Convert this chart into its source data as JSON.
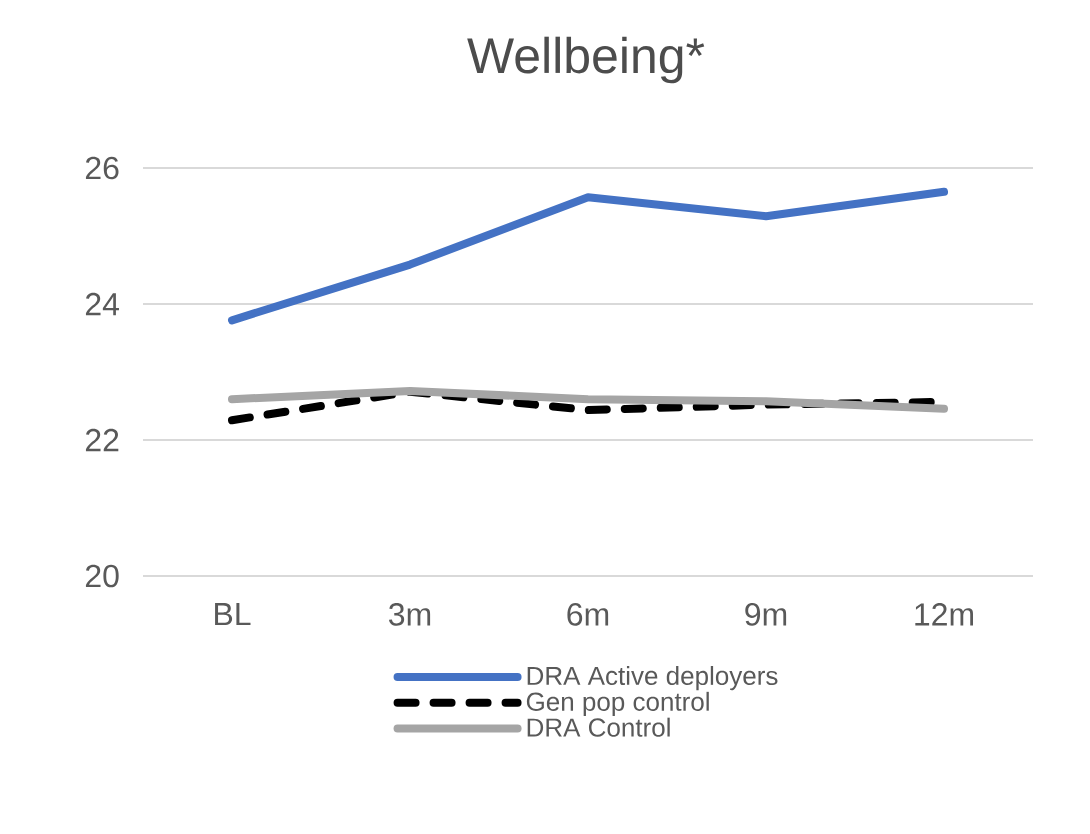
{
  "chart_data": {
    "type": "line",
    "title": "Wellbeing*",
    "categories": [
      "BL",
      "3m",
      "6m",
      "9m",
      "12m"
    ],
    "ylim": [
      20,
      26
    ],
    "yticks": [
      20,
      22,
      24,
      26
    ],
    "grid": "y",
    "legend": "bottom",
    "series": [
      {
        "name": "DRA Active deployers",
        "color": "#4472c4",
        "line_style": "solid",
        "values": [
          23.76,
          24.58,
          25.57,
          25.29,
          25.65
        ]
      },
      {
        "name": "Gen pop control",
        "color": "#000000",
        "line_style": "dashed",
        "values": [
          22.29,
          22.71,
          22.44,
          22.52,
          22.56
        ]
      },
      {
        "name": "DRA Control",
        "color": "#a5a5a5",
        "line_style": "solid",
        "values": [
          22.6,
          22.72,
          22.6,
          22.57,
          22.46
        ]
      }
    ]
  }
}
